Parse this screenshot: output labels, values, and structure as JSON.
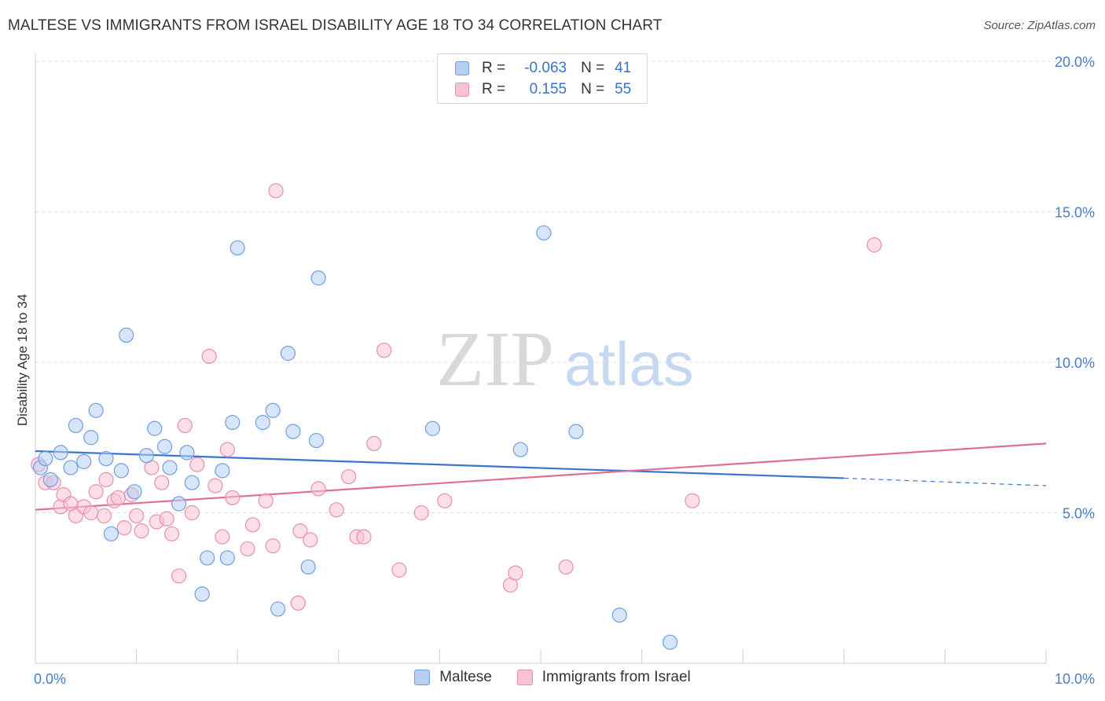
{
  "title": "MALTESE VS IMMIGRANTS FROM ISRAEL DISABILITY AGE 18 TO 34 CORRELATION CHART",
  "source": "Source: ZipAtlas.com",
  "watermark": {
    "zip": "ZIP",
    "atlas": "atlas"
  },
  "legend": {
    "rows": [
      {
        "r_label": "R =",
        "r_value": "-0.063",
        "n_label": "N =",
        "n_value": "41",
        "color": "#a9c8f0"
      },
      {
        "r_label": "R =",
        "r_value": "0.155",
        "n_label": "N =",
        "n_value": "55",
        "color": "#f5b9cb"
      }
    ]
  },
  "colors": {
    "blue_fill": "#b7d0f2",
    "blue_stroke": "#6f9fe0",
    "blue_line": "#3a76cf",
    "pink_fill": "#f7c3d3",
    "pink_stroke": "#e890ab",
    "pink_line": "#e06f98"
  },
  "chart_data": {
    "type": "scatter",
    "title": "MALTESE VS IMMIGRANTS FROM ISRAEL DISABILITY AGE 18 TO 34 CORRELATION CHART",
    "xlabel": "",
    "ylabel": "Disability Age 18 to 34",
    "xlim": [
      0,
      10
    ],
    "ylim": [
      0,
      20
    ],
    "x_tick_labels": [
      "0.0%",
      "10.0%"
    ],
    "y_ticks": [
      5,
      10,
      15,
      20
    ],
    "y_tick_labels": [
      "5.0%",
      "10.0%",
      "15.0%",
      "20.0%"
    ],
    "grid": true,
    "legend_position": "bottom",
    "series": [
      {
        "name": "Maltese",
        "points": [
          [
            0.05,
            6.5
          ],
          [
            0.1,
            6.8
          ],
          [
            0.15,
            6.1
          ],
          [
            0.25,
            7.0
          ],
          [
            0.35,
            6.5
          ],
          [
            0.4,
            7.9
          ],
          [
            0.48,
            6.7
          ],
          [
            0.55,
            7.5
          ],
          [
            0.6,
            8.4
          ],
          [
            0.7,
            6.8
          ],
          [
            0.75,
            4.3
          ],
          [
            0.85,
            6.4
          ],
          [
            0.9,
            10.9
          ],
          [
            0.98,
            5.7
          ],
          [
            1.1,
            6.9
          ],
          [
            1.18,
            7.8
          ],
          [
            1.28,
            7.2
          ],
          [
            1.33,
            6.5
          ],
          [
            1.42,
            5.3
          ],
          [
            1.5,
            7.0
          ],
          [
            1.55,
            6.0
          ],
          [
            1.7,
            3.5
          ],
          [
            1.65,
            2.3
          ],
          [
            1.85,
            6.4
          ],
          [
            1.9,
            3.5
          ],
          [
            1.95,
            8.0
          ],
          [
            2.0,
            13.8
          ],
          [
            2.25,
            8.0
          ],
          [
            2.35,
            8.4
          ],
          [
            2.4,
            1.8
          ],
          [
            2.5,
            10.3
          ],
          [
            2.55,
            7.7
          ],
          [
            2.7,
            3.2
          ],
          [
            2.78,
            7.4
          ],
          [
            2.8,
            12.8
          ],
          [
            3.93,
            7.8
          ],
          [
            4.8,
            7.1
          ],
          [
            5.03,
            14.3
          ],
          [
            5.35,
            7.7
          ],
          [
            5.78,
            1.6
          ],
          [
            6.28,
            0.7
          ]
        ],
        "trend": {
          "x": [
            0,
            8.0
          ],
          "y": [
            7.05,
            6.15
          ],
          "dashed_extension": {
            "x": [
              8.0,
              10.0
            ],
            "y": [
              6.15,
              5.9
            ]
          }
        }
      },
      {
        "name": "Immigrants from Israel",
        "points": [
          [
            0.03,
            6.6
          ],
          [
            0.1,
            6.0
          ],
          [
            0.18,
            6.0
          ],
          [
            0.25,
            5.2
          ],
          [
            0.28,
            5.6
          ],
          [
            0.35,
            5.3
          ],
          [
            0.4,
            4.9
          ],
          [
            0.48,
            5.2
          ],
          [
            0.55,
            5.0
          ],
          [
            0.6,
            5.7
          ],
          [
            0.68,
            4.9
          ],
          [
            0.7,
            6.1
          ],
          [
            0.78,
            5.4
          ],
          [
            0.82,
            5.5
          ],
          [
            0.88,
            4.5
          ],
          [
            0.95,
            5.6
          ],
          [
            1.0,
            4.9
          ],
          [
            1.05,
            4.4
          ],
          [
            1.15,
            6.5
          ],
          [
            1.2,
            4.7
          ],
          [
            1.25,
            6.0
          ],
          [
            1.3,
            4.8
          ],
          [
            1.35,
            4.3
          ],
          [
            1.42,
            2.9
          ],
          [
            1.48,
            7.9
          ],
          [
            1.55,
            5.0
          ],
          [
            1.6,
            6.6
          ],
          [
            1.72,
            10.2
          ],
          [
            1.78,
            5.9
          ],
          [
            1.85,
            4.2
          ],
          [
            1.9,
            7.1
          ],
          [
            1.95,
            5.5
          ],
          [
            2.1,
            3.8
          ],
          [
            2.15,
            4.6
          ],
          [
            2.28,
            5.4
          ],
          [
            2.35,
            3.9
          ],
          [
            2.38,
            15.7
          ],
          [
            2.6,
            2.0
          ],
          [
            2.62,
            4.4
          ],
          [
            2.72,
            4.1
          ],
          [
            2.8,
            5.8
          ],
          [
            2.98,
            5.1
          ],
          [
            3.1,
            6.2
          ],
          [
            3.18,
            4.2
          ],
          [
            3.25,
            4.2
          ],
          [
            3.35,
            7.3
          ],
          [
            3.45,
            10.4
          ],
          [
            3.6,
            3.1
          ],
          [
            3.82,
            5.0
          ],
          [
            4.05,
            5.4
          ],
          [
            4.7,
            2.6
          ],
          [
            4.75,
            3.0
          ],
          [
            5.25,
            3.2
          ],
          [
            6.5,
            5.4
          ],
          [
            8.3,
            13.9
          ]
        ],
        "trend": {
          "x": [
            0,
            10.0
          ],
          "y": [
            5.1,
            7.3
          ]
        }
      }
    ]
  }
}
